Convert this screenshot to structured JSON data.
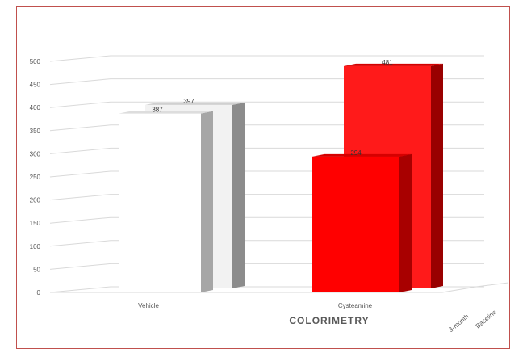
{
  "chart_data": {
    "type": "bar",
    "title": "",
    "xlabel": "COLORIMETRY",
    "ylabel": "",
    "categories": [
      "Vehicle",
      "Cysteamine"
    ],
    "series": [
      {
        "name": "3-month",
        "values": [
          387,
          294
        ]
      },
      {
        "name": "Baseline",
        "values": [
          397,
          481
        ]
      }
    ],
    "ylim": [
      0,
      500
    ],
    "yticks": [
      0,
      50,
      100,
      150,
      200,
      250,
      300,
      350,
      400,
      450,
      500
    ],
    "grid": true,
    "legend": "depth-axis",
    "colors": {
      "vehicle_front": "#ffffff",
      "vehicle_side": "#a6a6a6",
      "vehicle_back": "#f2f2f2",
      "vehicle_back_side": "#8c8c8c",
      "cyst_front": "#ff0000",
      "cyst_side": "#a80000",
      "cyst_back": "#ff1a1a",
      "cyst_back_side": "#990000",
      "grid": "#d9d9d9",
      "border": "#c0504d"
    }
  }
}
